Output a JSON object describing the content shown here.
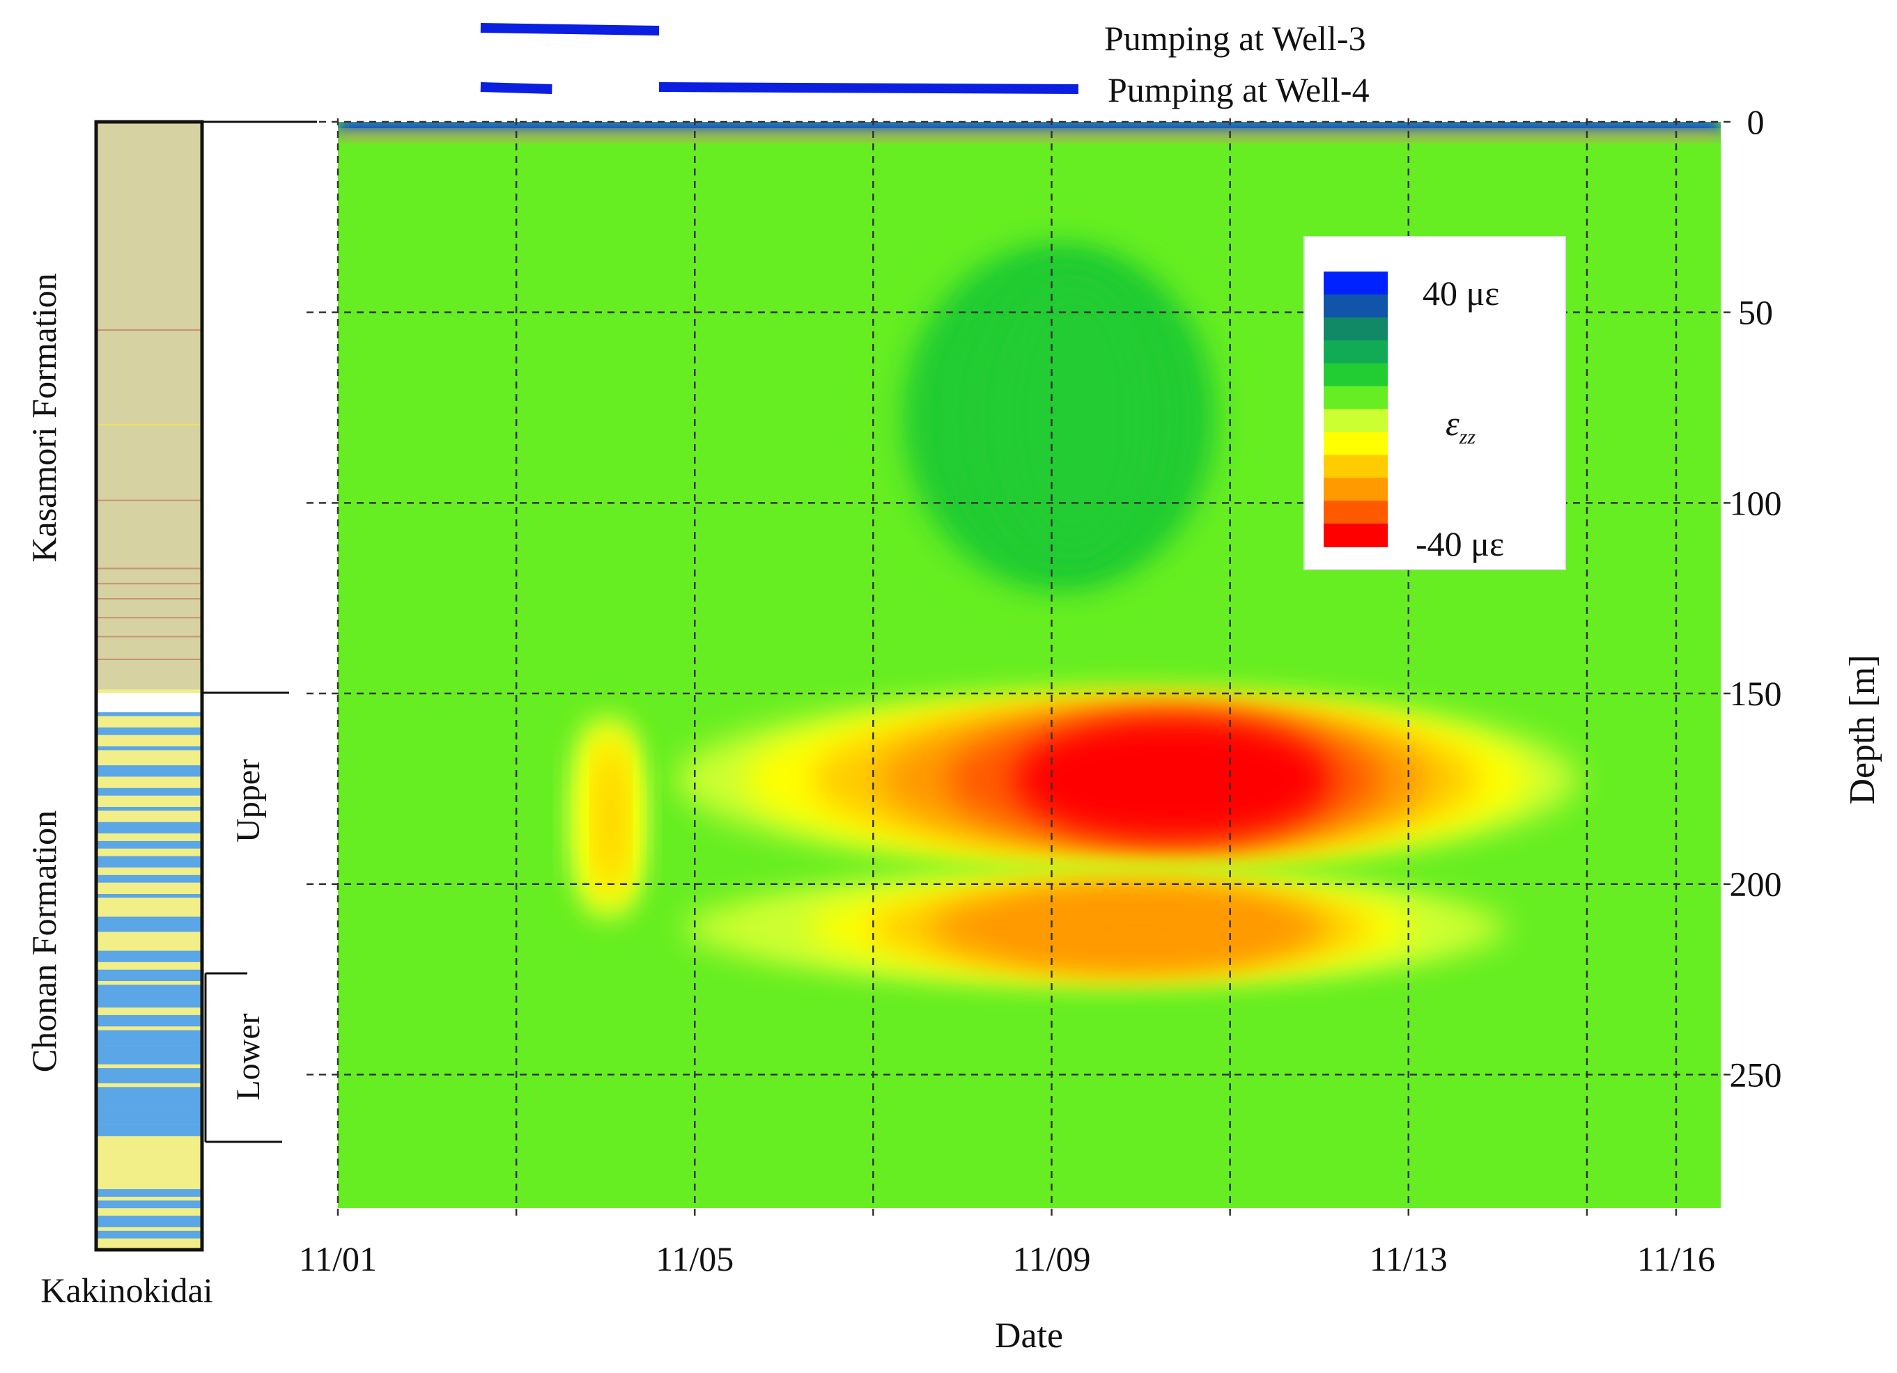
{
  "chart_data": {
    "type": "heatmap",
    "title": "",
    "xlabel": "Date",
    "ylabel": "Depth [m]",
    "x_ticks": [
      "11/01",
      "11/05",
      "11/09",
      "11/13",
      "11/16"
    ],
    "x_range_days": [
      1,
      16.5
    ],
    "y_ticks": [
      0,
      50,
      100,
      150,
      200,
      250
    ],
    "ylim": [
      0,
      285
    ],
    "grid": true,
    "grid_x_days": [
      1,
      3,
      5,
      7,
      9,
      11,
      13,
      15,
      16
    ],
    "colorbar": {
      "max_label": "40 με",
      "min_label": "-40 με",
      "symbol_main": "ε",
      "symbol_sub": "zz",
      "range": [
        -40,
        40
      ],
      "colors": [
        "#ff0000",
        "#ff5a00",
        "#ff9a00",
        "#ffcc00",
        "#ffff00",
        "#ccff33",
        "#66ee22",
        "#22cc33",
        "#11aa55",
        "#118866",
        "#1155aa",
        "#0022ff"
      ]
    },
    "background_strain": 5,
    "anomalies": [
      {
        "label": "upper aquifer contraction",
        "date_start": 4.7,
        "date_end": 14.8,
        "depth_start": 150,
        "depth_end": 195,
        "min_strain": -38
      },
      {
        "label": "lower band contraction",
        "date_start": 4.8,
        "date_end": 14.0,
        "depth_start": 198,
        "depth_end": 225,
        "min_strain": -28
      },
      {
        "label": "early response",
        "date_start": 3.5,
        "date_end": 4.5,
        "depth_start": 155,
        "depth_end": 210,
        "min_strain": -15
      },
      {
        "label": "extension lobe",
        "date_start": 7.0,
        "date_end": 11.0,
        "depth_start": 30,
        "depth_end": 125,
        "min_strain": 14
      }
    ],
    "pumping": [
      {
        "name": "Pumping at Well-3",
        "intervals": [
          [
            2.6,
            4.6
          ]
        ]
      },
      {
        "name": "Pumping at Well-4",
        "intervals": [
          [
            2.6,
            3.4
          ],
          [
            4.6,
            9.3
          ]
        ]
      }
    ]
  },
  "stratigraphy": {
    "well_name": "Kakinokidai",
    "formations": [
      {
        "name": "Kasamori Formation",
        "depth_top": 0,
        "depth_bottom": 150,
        "color": "#d6d2a2"
      },
      {
        "name": "Chonan Formation",
        "depth_top": 150,
        "depth_bottom": 298,
        "color": "#f2ee88"
      }
    ],
    "units": [
      {
        "name": "Upper",
        "depth_top": 150,
        "depth_bottom": 225
      },
      {
        "name": "Lower",
        "depth_top": 225,
        "depth_bottom": 269
      }
    ]
  }
}
